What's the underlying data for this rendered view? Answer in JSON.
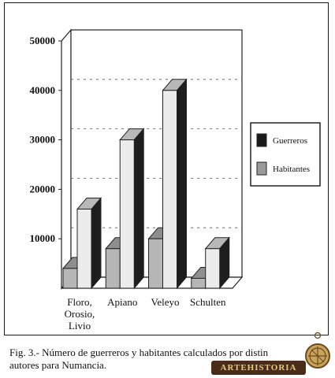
{
  "chart_data": {
    "type": "bar",
    "categories": [
      "Floro,\nOrosio,\nLivio",
      "Apiano",
      "Veleyo",
      "Schulten"
    ],
    "series": [
      {
        "name": "Guerreros",
        "values": [
          4000,
          8000,
          10000,
          2000
        ],
        "color": "#b6b6b6"
      },
      {
        "name": "Habitantes",
        "values": [
          16000,
          30000,
          40000,
          8000
        ],
        "color": "#ececec"
      }
    ],
    "yticks": [
      10000,
      20000,
      30000,
      40000,
      50000
    ],
    "ylim": [
      0,
      50000
    ],
    "grid": "dashed, at 10000, 20000, 30000, 40000",
    "legend_position": "right",
    "legend_swatch_colors": [
      "#1a1a1a",
      "#9a9a9a"
    ],
    "title": "",
    "xlabel": "",
    "ylabel": ""
  },
  "caption": {
    "line1": "Fig. 3.- Número de guerreros y habitantes calculados por distin",
    "line2": "autores para Numancia."
  },
  "logo": {
    "text": "ARTEHISTORIA",
    "colors": {
      "background": "#4a2d18",
      "text": "#e9c981"
    }
  }
}
